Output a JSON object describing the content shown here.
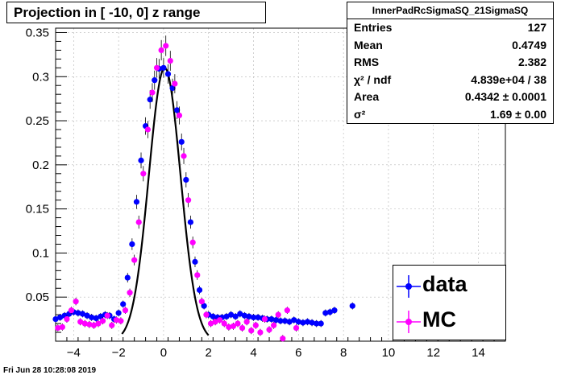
{
  "title": "Projection in [ -10,   0] z range",
  "footer_date": "Fri Jun 28 10:28:08 2019",
  "stats": {
    "name": "InnerPadRcSigmaSQ_21SigmaSQ",
    "rows": [
      {
        "label": "Entries",
        "value": "127"
      },
      {
        "label": "Mean",
        "value": "0.4749"
      },
      {
        "label": "RMS",
        "value": "2.382"
      },
      {
        "label": "χ² / ndf",
        "value": "4.839e+04 / 38"
      },
      {
        "label": "Area",
        "value": "0.4342 ± 0.0001"
      },
      {
        "label": "σ²",
        "value": "1.69 ± 0.00"
      }
    ]
  },
  "legend": [
    {
      "label": "data",
      "color": "#0000ff"
    },
    {
      "label": "MC",
      "color": "#ff00ff"
    }
  ],
  "chart_data": {
    "type": "scatter",
    "xlim": [
      -4.8,
      15.2
    ],
    "ylim": [
      0,
      0.355
    ],
    "x_ticks": [
      -4,
      -2,
      0,
      2,
      4,
      6,
      8,
      10,
      12,
      14
    ],
    "y_ticks": [
      0.05,
      0.1,
      0.15,
      0.2,
      0.25,
      0.3,
      0.35
    ],
    "y_tick_labels": [
      "0.05",
      "0.1",
      "0.15",
      "0.2",
      "0.25",
      "0.3",
      "0.35"
    ],
    "grid": true,
    "legend_position": "bottom-right",
    "series": [
      {
        "name": "data",
        "color": "#0000ff",
        "x": [
          -4.8,
          -4.6,
          -4.4,
          -4.2,
          -4.0,
          -3.8,
          -3.6,
          -3.4,
          -3.2,
          -3.0,
          -2.8,
          -2.6,
          -2.4,
          -2.2,
          -2.0,
          -1.8,
          -1.6,
          -1.4,
          -1.2,
          -1.0,
          -0.8,
          -0.6,
          -0.4,
          -0.2,
          0.0,
          0.2,
          0.4,
          0.6,
          0.8,
          1.0,
          1.2,
          1.4,
          1.6,
          1.8,
          2.0,
          2.2,
          2.4,
          2.6,
          2.8,
          3.0,
          3.2,
          3.4,
          3.6,
          3.8,
          4.0,
          4.2,
          4.4,
          4.6,
          4.8,
          5.0,
          5.2,
          5.4,
          5.6,
          5.8,
          6.0,
          6.2,
          6.4,
          6.6,
          6.8,
          7.0,
          7.2,
          7.4,
          7.6,
          8.4
        ],
        "y": [
          0.025,
          0.027,
          0.029,
          0.031,
          0.033,
          0.032,
          0.031,
          0.029,
          0.027,
          0.026,
          0.028,
          0.03,
          0.029,
          0.025,
          0.032,
          0.042,
          0.072,
          0.11,
          0.158,
          0.205,
          0.244,
          0.274,
          0.296,
          0.309,
          0.31,
          0.303,
          0.287,
          0.262,
          0.226,
          0.183,
          0.135,
          0.09,
          0.058,
          0.04,
          0.03,
          0.028,
          0.027,
          0.027,
          0.028,
          0.03,
          0.028,
          0.031,
          0.029,
          0.028,
          0.027,
          0.027,
          0.026,
          0.025,
          0.025,
          0.024,
          0.023,
          0.023,
          0.022,
          0.024,
          0.022,
          0.021,
          0.022,
          0.021,
          0.02,
          0.02,
          0.032,
          0.033,
          0.035,
          0.04
        ]
      },
      {
        "name": "MC",
        "color": "#ff00ff",
        "x": [
          -4.7,
          -4.5,
          -4.3,
          -4.1,
          -3.9,
          -3.7,
          -3.5,
          -3.3,
          -3.1,
          -2.9,
          -2.7,
          -2.5,
          -2.3,
          -2.1,
          -1.9,
          -1.7,
          -1.5,
          -1.3,
          -1.1,
          -0.9,
          -0.7,
          -0.5,
          -0.3,
          -0.1,
          0.1,
          0.3,
          0.5,
          0.7,
          0.9,
          1.1,
          1.3,
          1.5,
          1.7,
          1.9,
          2.1,
          2.3,
          2.5,
          2.7,
          2.9,
          3.1,
          3.3,
          3.5,
          3.7,
          3.9,
          4.1,
          4.3,
          4.5,
          4.7,
          4.9,
          5.1,
          5.3,
          5.5,
          5.9
        ],
        "y": [
          0.015,
          0.016,
          0.025,
          0.035,
          0.045,
          0.022,
          0.02,
          0.019,
          0.018,
          0.02,
          0.023,
          0.029,
          0.018,
          0.024,
          0.023,
          0.035,
          0.055,
          0.092,
          0.135,
          0.19,
          0.24,
          0.282,
          0.31,
          0.33,
          0.335,
          0.318,
          0.292,
          0.256,
          0.21,
          0.16,
          0.112,
          0.075,
          0.045,
          0.03,
          0.02,
          0.022,
          0.024,
          0.02,
          0.016,
          0.017,
          0.02,
          0.015,
          0.022,
          0.012,
          0.018,
          0.01,
          0.025,
          0.013,
          0.018,
          0.03,
          0.003,
          0.035,
          0.015
        ]
      }
    ],
    "fit_curve": {
      "color": "#000000",
      "x_range": [
        -1.85,
        2.0
      ],
      "amplitude": 0.31,
      "mean": 0.05,
      "sigma": 0.705
    }
  }
}
